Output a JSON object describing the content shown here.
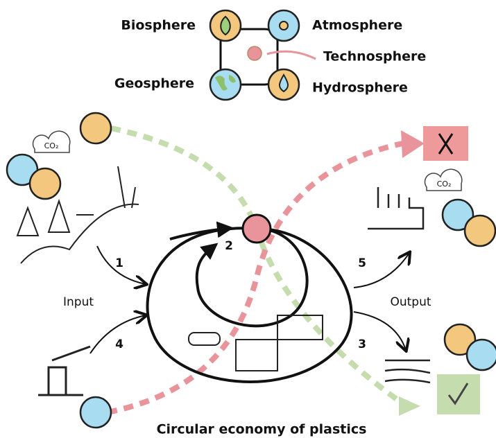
{
  "legend": {
    "biosphere": "Biosphere",
    "atmosphere": "Atmosphere",
    "technosphere": "Technosphere",
    "geosphere": "Geosphere",
    "hydrosphere": "Hydrosphere"
  },
  "steps": [
    "1",
    "2",
    "3",
    "4",
    "5"
  ],
  "input": "Input",
  "output": "Output",
  "co2_labels": [
    "CO₂",
    "CO₂"
  ],
  "title": "Circular economy of plastics"
}
